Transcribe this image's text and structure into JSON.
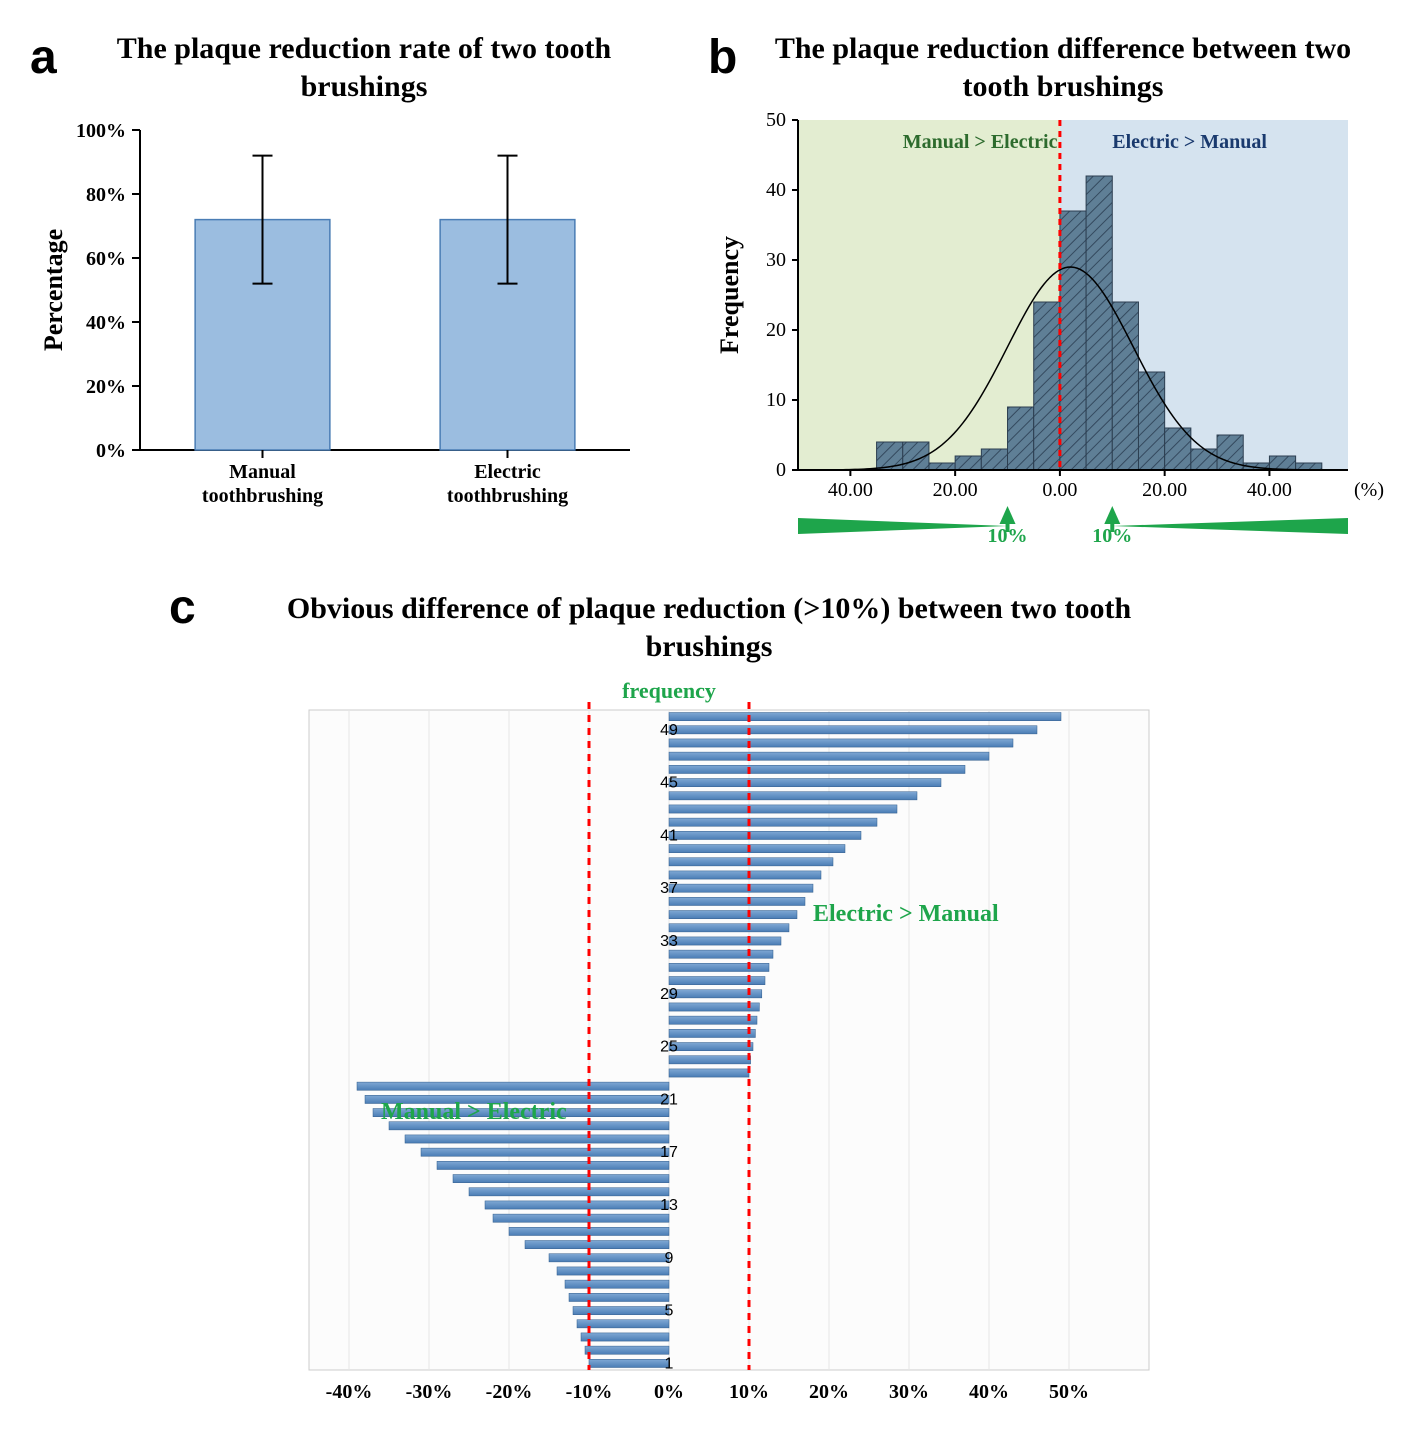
{
  "panel_a": {
    "label": "a",
    "title": "The plaque reduction rate of  two tooth brushings",
    "ylabel": "Percentage",
    "categories": [
      "Manual\ntoothbrushing",
      "Electric\ntoothbrushing"
    ],
    "values": [
      72,
      72
    ],
    "err_low": [
      20,
      20
    ],
    "err_high": [
      20,
      20
    ],
    "ylim": [
      0,
      100
    ],
    "ytick_step": 20,
    "bar_fill": "#9bbde0",
    "bar_stroke": "#4a7db5",
    "bg": "#ffffff",
    "axis_color": "#000000",
    "tick_fontsize": 20,
    "label_fontsize": 26,
    "title_fontsize": 30
  },
  "panel_b": {
    "label": "b",
    "title": "The plaque reduction difference between two tooth brushings",
    "ylabel": "Frequency",
    "bins_x": [
      -45,
      -40,
      -35,
      -30,
      -25,
      -20,
      -15,
      -10,
      -5,
      0,
      5,
      10,
      15,
      20,
      25,
      30,
      35,
      40,
      45,
      50
    ],
    "bin_heights": [
      0,
      0,
      4,
      4,
      1,
      2,
      3,
      9,
      24,
      37,
      42,
      24,
      14,
      6,
      3,
      5,
      1,
      2,
      1
    ],
    "ylim": [
      0,
      50
    ],
    "ytick_step": 10,
    "xlim": [
      -50,
      55
    ],
    "xticks": [
      -40,
      -20,
      0,
      20,
      40
    ],
    "xtick_labels": [
      "40.00",
      "20.00",
      "0.00",
      "20.00",
      "40.00"
    ],
    "x_unit": "(%)",
    "left_bg": "#e3edd1",
    "right_bg": "#d5e3ef",
    "bar_fill": "#5f7f96",
    "bar_stroke": "#2c3e50",
    "hatch_color": "#34495e",
    "divider_color": "#ff0000",
    "curve_color": "#000000",
    "left_text": "Manual > Electric",
    "right_text": "Electric > Manual",
    "region_text_color": "#2d6b2d",
    "arrow_color": "#1ea54b",
    "arrow_label": "10%",
    "tick_fontsize": 20,
    "label_fontsize": 26
  },
  "panel_c": {
    "label": "c",
    "title": "Obvious difference of plaque reduction (>10%) between two tooth brushings",
    "sub_label": "frequency",
    "sub_label_color": "#1ea54b",
    "bars_neg": [
      -10,
      -10.5,
      -11,
      -11.5,
      -12,
      -12.5,
      -13,
      -14,
      -15,
      -18,
      -20,
      -22,
      -23,
      -25,
      -27,
      -29,
      -31,
      -33,
      -35,
      -37,
      -38,
      -39
    ],
    "bars_pos": [
      10,
      10.2,
      10.5,
      10.8,
      11,
      11.3,
      11.6,
      12,
      12.5,
      13,
      14,
      15,
      16,
      17,
      18,
      19,
      20.5,
      22,
      24,
      26,
      28.5,
      31,
      34,
      37,
      40,
      43,
      46,
      49
    ],
    "y_labels": [
      1,
      5,
      9,
      13,
      17,
      21,
      25,
      29,
      33,
      37,
      41,
      45,
      49
    ],
    "xlim": [
      -45,
      60
    ],
    "xticks": [
      -40,
      -30,
      -20,
      -10,
      0,
      10,
      20,
      30,
      40,
      50
    ],
    "xtick_labels": [
      "-40%",
      "-30%",
      "-20%",
      "-10%",
      "0%",
      "10%",
      "20%",
      "30%",
      "40%",
      "50%"
    ],
    "bar_fill_top": "#7fa8d4",
    "bar_fill_bottom": "#4a7db5",
    "vline_color": "#ff0000",
    "left_text": "Manual > Electric",
    "right_text": "Electric > Manual",
    "region_text_color": "#1ea54b",
    "grid_color": "#e6e6e6",
    "bg": "#fcfcfc",
    "tick_fontsize": 20,
    "label_fontsize": 24,
    "title_fontsize": 30
  }
}
